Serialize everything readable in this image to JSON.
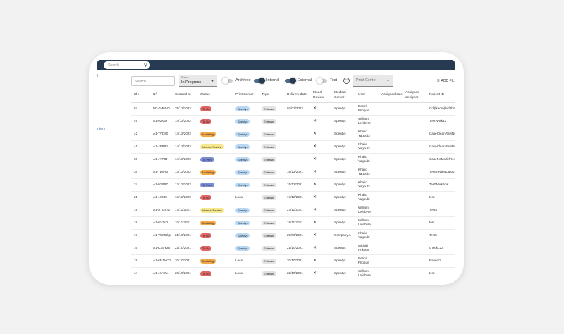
{
  "topbar": {
    "search_placeholder": "Search..."
  },
  "sidebar": {
    "item1": "l",
    "item2": "nters"
  },
  "filters": {
    "search_placeholder": "Search",
    "status_label": "Status",
    "status_value": "In Progress",
    "toggles": [
      {
        "label": "Archived",
        "on": false
      },
      {
        "label": "Internal",
        "on": true
      },
      {
        "label": "External",
        "on": true
      },
      {
        "label": "Test",
        "on": false
      }
    ],
    "print_center_placeholder": "Print Center",
    "add_filter": "ADD FIL"
  },
  "table": {
    "headers": [
      "Id",
      "N°",
      "Created at",
      "Status",
      "Print Center",
      "Type",
      "Delivery date",
      "Model Review",
      "Medical Center",
      "User",
      "Assigned sale",
      "Assigned designer",
      "Patient ID"
    ],
    "rows": [
      {
        "id": "57",
        "n": "M3-0MMV0",
        "created": "29/12/2022",
        "status": "To Do",
        "pc": "Spentys",
        "type": "External",
        "delivery": "03/01/2022",
        "mc": "Spentys",
        "user": "Benoit Frioque",
        "patient": "Cdl(lkeom)hdf8bo"
      },
      {
        "id": "49",
        "n": "A1-02K6J",
        "created": "14/12/2022",
        "status": "To Do",
        "pc": "Spentys",
        "type": "External",
        "delivery": "",
        "mc": "Spentys",
        "user": "William Lefebvre",
        "patient": "TestWork12"
      },
      {
        "id": "42",
        "n": "A1-7VQ80",
        "created": "14/12/2022",
        "status": "Modeling",
        "pc": "Spentys",
        "type": "External",
        "delivery": "",
        "mc": "Spentys",
        "user": "Khalid Yagoubi",
        "patient": "CaseCleanRawNo"
      },
      {
        "id": "41",
        "n": "A1-JPP80",
        "created": "14/12/2022",
        "status": "Internal Review",
        "pc": "Spentys",
        "type": "External",
        "delivery": "",
        "mc": "Spentys",
        "user": "Khalid Yagoubi",
        "patient": "CaseCleanRawNo"
      },
      {
        "id": "36",
        "n": "A1-JYP8J",
        "created": "14/12/2022",
        "status": "To Print",
        "pc": "Spentys",
        "type": "External",
        "delivery": "",
        "mc": "Spentys",
        "user": "Khalid Yagoubi",
        "patient": "CaseNoModelRev"
      },
      {
        "id": "26",
        "n": "A1-7D6Y0",
        "created": "13/12/2022",
        "status": "Modeling",
        "pc": "Spentys",
        "type": "External",
        "delivery": "18/12/2021",
        "mc": "Spentys",
        "user": "Khalid Yagoubi",
        "patient": "TestReviewCusto"
      },
      {
        "id": "24",
        "n": "A1-02PP7",
        "created": "13/12/2022",
        "status": "To Print",
        "pc": "Spentys",
        "type": "External",
        "delivery": "15/12/2021",
        "mc": "Spentys",
        "user": "Khalid Yagoubi",
        "patient": "TestWorkflow"
      },
      {
        "id": "21",
        "n": "A1-17530",
        "created": "13/12/2022",
        "status": "To Do",
        "pc": "Local",
        "type": "External",
        "delivery": "17/12/2021",
        "mc": "Spentys",
        "user": "Khalid Yagoubi",
        "patient": "test"
      },
      {
        "id": "19",
        "n": "A1-A7Q872",
        "created": "17/11/2021",
        "status": "Internal Review",
        "pc": "Spentys",
        "type": "External",
        "delivery": "27/11/2021",
        "mc": "Spentys",
        "user": "William Lefebvre",
        "patient": "Test5"
      },
      {
        "id": "18",
        "n": "A1-02deTL",
        "created": "10/11/2021",
        "status": "Modeling",
        "pc": "Spentys",
        "type": "External",
        "delivery": "18/11/2021",
        "mc": "Spentys",
        "user": "William Lefebvre",
        "patient": "test"
      },
      {
        "id": "17",
        "n": "A1-VEMKkp",
        "created": "21/10/2021",
        "status": "To Do",
        "pc": "Spentys",
        "type": "External",
        "delivery": "29/09/2021",
        "mc": "Company A",
        "user": "Khalid Yagoubi",
        "patient": "Test5"
      },
      {
        "id": "16",
        "n": "A1-KX5Y26",
        "created": "21/10/2021",
        "status": "To Do",
        "pc": "Spentys",
        "type": "External",
        "delivery": "21/10/2021",
        "mc": "Spentys",
        "user": "Michiel Prikken",
        "patient": "check123"
      },
      {
        "id": "15",
        "n": "A1-6EJAKO",
        "created": "20/10/2021",
        "status": "Modeling",
        "pc": "Local",
        "type": "External",
        "delivery": "20/10/2021",
        "mc": "Spentys",
        "user": "Benoit Frioque",
        "patient": "Patient3"
      },
      {
        "id": "14",
        "n": "A1-e7AJk4",
        "created": "20/10/2021",
        "status": "To Do",
        "pc": "Local",
        "type": "External",
        "delivery": "22/10/2021",
        "mc": "Spentys",
        "user": "William Lefebvre",
        "patient": "test"
      }
    ]
  },
  "colors": {
    "topbar": "#263a52",
    "todo": "#e06666",
    "modeling": "#f0a848",
    "internal_review": "#f6e68c",
    "to_print": "#7c8bd6",
    "spentys": "#b9d8f4"
  }
}
